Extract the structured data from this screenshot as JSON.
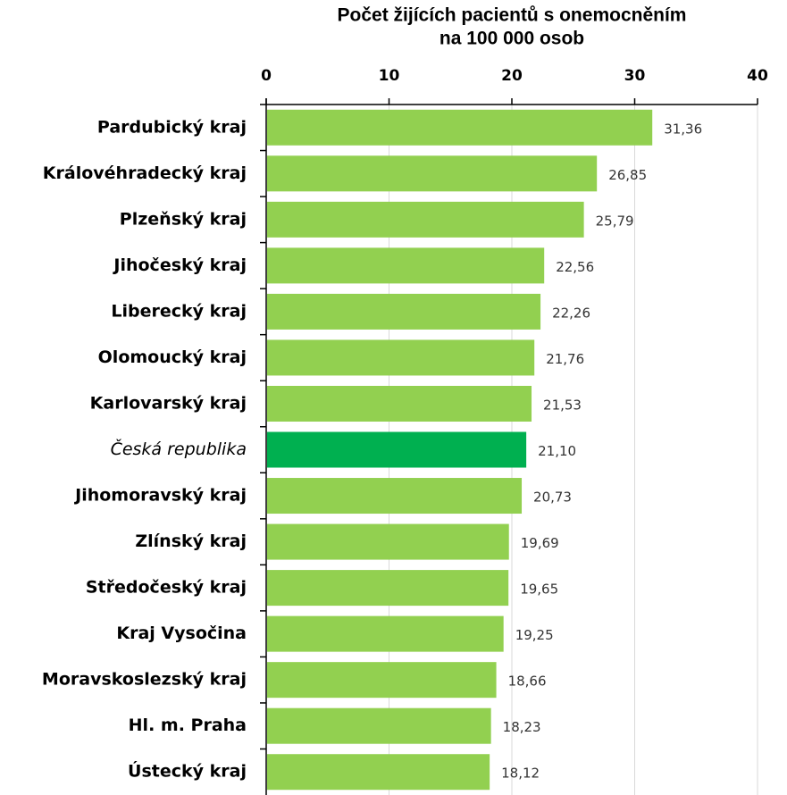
{
  "chart_data": {
    "type": "bar",
    "orientation": "horizontal",
    "title": [
      "Počet žijících pacientů s onemocněním",
      "na 100 000 osob"
    ],
    "categories": [
      "Pardubický kraj",
      "Královéhradecký kraj",
      "Plzeňský kraj",
      "Jihočeský kraj",
      "Liberecký kraj",
      "Olomoucký kraj",
      "Karlovarský kraj",
      "Česká republika",
      "Jihomoravský kraj",
      "Zlínský kraj",
      "Středočeský kraj",
      "Kraj Vysočina",
      "Moravskoslezský kraj",
      "Hl. m. Praha",
      "Ústecký kraj"
    ],
    "category_styles": [
      "bold",
      "bold",
      "bold",
      "bold",
      "bold",
      "bold",
      "bold",
      "italic",
      "bold",
      "bold",
      "bold",
      "bold",
      "bold",
      "bold",
      "bold"
    ],
    "values": [
      31.36,
      26.85,
      25.79,
      22.56,
      22.26,
      21.76,
      21.53,
      21.1,
      20.73,
      19.69,
      19.65,
      19.25,
      18.66,
      18.23,
      18.12
    ],
    "value_labels": [
      "31,36",
      "26,85",
      "25,79",
      "22,56",
      "22,26",
      "21,76",
      "21,53",
      "21,10",
      "20,73",
      "19,69",
      "19,65",
      "19,25",
      "18,66",
      "18,23",
      "18,12"
    ],
    "colors": [
      "#92d050",
      "#92d050",
      "#92d050",
      "#92d050",
      "#92d050",
      "#92d050",
      "#92d050",
      "#00b050",
      "#92d050",
      "#92d050",
      "#92d050",
      "#92d050",
      "#92d050",
      "#92d050",
      "#92d050"
    ],
    "xlim": [
      0,
      40
    ],
    "xticks": [
      0,
      10,
      20,
      30,
      40
    ],
    "grid": true
  }
}
